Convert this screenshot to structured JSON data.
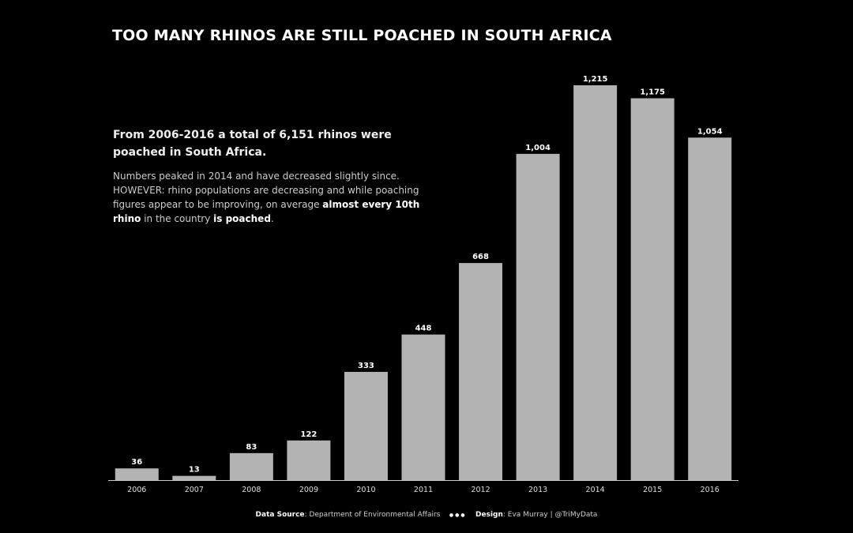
{
  "title": "TOO MANY RHINOS ARE STILL POACHED IN SOUTH AFRICA",
  "subtitle": "From 2006-2016 a total of 6,151 rhinos were poached in South Africa.",
  "body": {
    "p1": "Numbers peaked in 2014 and have decreased slightly since.",
    "p2": "HOWEVER: rhino populations are decreasing and while poaching figures appear to be improving, on average ",
    "p3": "almost every 10th rhino",
    "p4": " in the country ",
    "p5": "is poached",
    "p6": "."
  },
  "footer": {
    "source_label": "Data Source",
    "source": ": Department of Environmental Affairs",
    "dots": "●●●",
    "design_label": "Design",
    "design": ": Eva Murray | @TriMyData"
  },
  "chart_data": {
    "type": "bar",
    "categories": [
      "2006",
      "2007",
      "2008",
      "2009",
      "2010",
      "2011",
      "2012",
      "2013",
      "2014",
      "2015",
      "2016"
    ],
    "values": [
      36,
      13,
      83,
      122,
      333,
      448,
      668,
      1004,
      1215,
      1175,
      1054
    ],
    "labels": [
      "36",
      "13",
      "83",
      "122",
      "333",
      "448",
      "668",
      "1,004",
      "1,215",
      "1,175",
      "1,054"
    ],
    "ylim": [
      0,
      1215
    ],
    "grid": false,
    "bar_color": "#b3b3b3"
  }
}
